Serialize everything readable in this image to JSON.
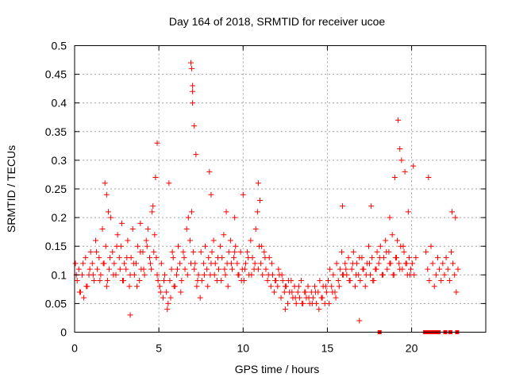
{
  "chart_data": {
    "type": "scatter",
    "title": "Day 164 of 2018, SRMTID for receiver ucoe",
    "xlabel": "GPS time / hours",
    "ylabel": "SRMTID / TECUs",
    "xlim": [
      0,
      24.4
    ],
    "ylim": [
      0,
      0.5
    ],
    "x_ticks": [
      0,
      5,
      10,
      15,
      20
    ],
    "x_tick_labels": [
      "0",
      "5",
      "10",
      "15",
      "20"
    ],
    "y_ticks": [
      0,
      0.05,
      0.1,
      0.15,
      0.2,
      0.25,
      0.3,
      0.35,
      0.4,
      0.45,
      0.5
    ],
    "y_tick_labels": [
      "0",
      "0.05",
      "0.1",
      "0.15",
      "0.2",
      "0.25",
      "0.3",
      "0.35",
      "0.4",
      "0.45",
      "0.5"
    ],
    "grid": true,
    "marker": "plus",
    "color": "#ff0000",
    "baseline_points_x": [
      18.1,
      20.8,
      21.0,
      21.2,
      21.4,
      21.6,
      22.0,
      22.3,
      22.7
    ],
    "series": [
      {
        "name": "SRMTID",
        "x": [
          0.05,
          0.15,
          0.25,
          0.35,
          0.45,
          0.55,
          0.65,
          0.75,
          0.85,
          0.95,
          1.05,
          1.15,
          1.25,
          1.35,
          1.45,
          1.55,
          1.65,
          1.75,
          1.85,
          1.95,
          2.05,
          2.15,
          2.25,
          2.35,
          2.45,
          2.55,
          2.65,
          2.75,
          2.85,
          2.95,
          3.05,
          3.15,
          3.25,
          3.35,
          3.45,
          3.55,
          3.65,
          3.75,
          3.85,
          3.95,
          4.05,
          4.15,
          4.25,
          4.35,
          4.45,
          4.55,
          4.65,
          4.75,
          4.85,
          4.95,
          5.05,
          5.15,
          5.25,
          5.35,
          5.45,
          5.55,
          5.65,
          5.75,
          5.85,
          5.95,
          6.05,
          6.15,
          6.25,
          6.35,
          6.45,
          6.55,
          6.65,
          6.75,
          6.85,
          6.95,
          7.05,
          7.15,
          7.25,
          7.35,
          7.45,
          7.55,
          7.65,
          7.75,
          7.85,
          7.95,
          8.05,
          8.15,
          8.25,
          8.35,
          8.45,
          8.55,
          8.65,
          8.75,
          8.85,
          8.95,
          9.05,
          9.15,
          9.25,
          9.35,
          9.45,
          9.55,
          9.65,
          9.75,
          9.85,
          9.95,
          10.05,
          10.15,
          10.25,
          10.35,
          10.45,
          10.55,
          10.65,
          10.75,
          10.85,
          10.95,
          11.05,
          11.15,
          11.25,
          11.35,
          11.45,
          11.55,
          11.65,
          11.75,
          11.85,
          11.95,
          12.05,
          12.15,
          12.25,
          12.35,
          12.45,
          12.55,
          12.65,
          12.75,
          12.85,
          12.95,
          13.05,
          13.15,
          13.25,
          13.35,
          13.45,
          13.55,
          13.65,
          13.75,
          13.85,
          13.95,
          14.05,
          14.15,
          14.25,
          14.35,
          14.45,
          14.55,
          14.65,
          14.75,
          14.85,
          14.95,
          15.05,
          15.15,
          15.25,
          15.35,
          15.45,
          15.55,
          15.65,
          15.75,
          15.85,
          15.95,
          16.05,
          16.15,
          16.25,
          16.35,
          16.45,
          16.55,
          16.65,
          16.75,
          16.85,
          16.95,
          17.05,
          17.15,
          17.25,
          17.35,
          17.45,
          17.55,
          17.65,
          17.75,
          17.85,
          17.95,
          18.05,
          18.15,
          18.25,
          18.35,
          18.45,
          18.55,
          18.65,
          18.75,
          18.85,
          18.95,
          19.05,
          19.15,
          19.25,
          19.35,
          19.45,
          19.55,
          19.65,
          19.75,
          19.85,
          19.95,
          20.05,
          20.15,
          20.25,
          20.85,
          20.95,
          21.05,
          21.15,
          21.25,
          21.35,
          21.45,
          21.55,
          21.65,
          21.75,
          21.85,
          21.95,
          22.05,
          22.15,
          22.25,
          22.35,
          22.45,
          22.55,
          22.65,
          22.75,
          0.1,
          0.3,
          0.5,
          0.7,
          0.9,
          1.1,
          1.3,
          1.5,
          1.7,
          1.9,
          2.1,
          2.3,
          2.5,
          2.7,
          2.9,
          3.1,
          3.3,
          3.5,
          3.7,
          3.9,
          4.1,
          4.3,
          4.5,
          4.7,
          4.9,
          5.1,
          5.3,
          5.5,
          5.7,
          5.9,
          6.1,
          6.3,
          6.5,
          6.7,
          6.9,
          7.1,
          7.3,
          7.5,
          7.7,
          7.9,
          8.1,
          8.3,
          8.5,
          8.7,
          8.9,
          9.1,
          9.3,
          9.5,
          9.7,
          9.9,
          10.1,
          10.3,
          10.5,
          10.7,
          10.9,
          11.1,
          11.3,
          11.5,
          11.7,
          11.9,
          12.1,
          12.3,
          12.5,
          12.7,
          12.9,
          13.1,
          13.3,
          13.5,
          13.7,
          13.9,
          14.1,
          14.3,
          14.5,
          14.7,
          14.9,
          15.1,
          15.3,
          15.5,
          15.7,
          15.9,
          16.1,
          16.3,
          16.5,
          16.7,
          16.9,
          17.1,
          17.3,
          17.5,
          17.7,
          17.9,
          18.1,
          18.3,
          18.5,
          18.7,
          18.9,
          19.1,
          19.3,
          19.5,
          19.7,
          19.9,
          4.8,
          4.9,
          6.9,
          7.0,
          7.0,
          7.1,
          7.0,
          7.2,
          6.95,
          19.2,
          19.3,
          19.4,
          19.0,
          19.6,
          20.1,
          8.0,
          8.1,
          10.9,
          11.0,
          5.6,
          1.8,
          1.9,
          2.0,
          2.8,
          3.3,
          3.9,
          4.6,
          5.8,
          9.0,
          9.5,
          10.0,
          17.6,
          18.7,
          19.8,
          21.0,
          22.4,
          22.6,
          15.9,
          16.9,
          12.5
        ],
        "y": [
          0.12,
          0.09,
          0.11,
          0.07,
          0.1,
          0.06,
          0.13,
          0.08,
          0.1,
          0.14,
          0.12,
          0.09,
          0.16,
          0.11,
          0.13,
          0.1,
          0.18,
          0.12,
          0.15,
          0.09,
          0.11,
          0.2,
          0.14,
          0.12,
          0.1,
          0.17,
          0.13,
          0.15,
          0.09,
          0.12,
          0.11,
          0.16,
          0.08,
          0.13,
          0.18,
          0.1,
          0.12,
          0.15,
          0.09,
          0.11,
          0.14,
          0.1,
          0.16,
          0.18,
          0.13,
          0.11,
          0.22,
          0.17,
          0.13,
          0.09,
          0.08,
          0.12,
          0.06,
          0.1,
          0.07,
          0.05,
          0.09,
          0.11,
          0.13,
          0.08,
          0.1,
          0.15,
          0.12,
          0.09,
          0.14,
          0.11,
          0.18,
          0.2,
          0.16,
          0.21,
          0.14,
          0.12,
          0.08,
          0.1,
          0.06,
          0.09,
          0.12,
          0.15,
          0.11,
          0.13,
          0.1,
          0.14,
          0.16,
          0.12,
          0.09,
          0.11,
          0.15,
          0.13,
          0.17,
          0.1,
          0.12,
          0.14,
          0.16,
          0.11,
          0.13,
          0.15,
          0.12,
          0.1,
          0.14,
          0.11,
          0.09,
          0.12,
          0.14,
          0.1,
          0.16,
          0.13,
          0.11,
          0.18,
          0.21,
          0.15,
          0.12,
          0.1,
          0.14,
          0.11,
          0.09,
          0.13,
          0.08,
          0.1,
          0.07,
          0.09,
          0.08,
          0.1,
          0.06,
          0.09,
          0.07,
          0.08,
          0.05,
          0.07,
          0.09,
          0.06,
          0.08,
          0.05,
          0.07,
          0.06,
          0.09,
          0.05,
          0.07,
          0.06,
          0.08,
          0.05,
          0.07,
          0.06,
          0.08,
          0.05,
          0.07,
          0.09,
          0.06,
          0.08,
          0.05,
          0.07,
          0.09,
          0.11,
          0.08,
          0.1,
          0.07,
          0.12,
          0.09,
          0.11,
          0.14,
          0.1,
          0.12,
          0.1,
          0.13,
          0.09,
          0.11,
          0.14,
          0.08,
          0.12,
          0.1,
          0.09,
          0.13,
          0.11,
          0.08,
          0.12,
          0.15,
          0.1,
          0.13,
          0.09,
          0.11,
          0.14,
          0.12,
          0.15,
          0.1,
          0.13,
          0.16,
          0.11,
          0.14,
          0.12,
          0.17,
          0.1,
          0.13,
          0.16,
          0.12,
          0.15,
          0.11,
          0.14,
          0.12,
          0.1,
          0.13,
          0.11,
          0.12,
          0.1,
          0.13,
          0.14,
          0.11,
          0.09,
          0.15,
          0.12,
          0.08,
          0.1,
          0.13,
          0.11,
          0.09,
          0.12,
          0.1,
          0.13,
          0.11,
          0.09,
          0.14,
          0.12,
          0.1,
          0.07,
          0.11,
          0.1,
          0.07,
          0.12,
          0.08,
          0.11,
          0.1,
          0.14,
          0.09,
          0.12,
          0.08,
          0.13,
          0.1,
          0.15,
          0.11,
          0.09,
          0.13,
          0.1,
          0.12,
          0.08,
          0.14,
          0.11,
          0.15,
          0.12,
          0.14,
          0.1,
          0.07,
          0.09,
          0.04,
          0.06,
          0.08,
          0.11,
          0.07,
          0.13,
          0.1,
          0.12,
          0.11,
          0.09,
          0.14,
          0.1,
          0.08,
          0.12,
          0.1,
          0.13,
          0.09,
          0.11,
          0.08,
          0.12,
          0.14,
          0.1,
          0.09,
          0.11,
          0.13,
          0.1,
          0.12,
          0.11,
          0.15,
          0.13,
          0.1,
          0.12,
          0.09,
          0.11,
          0.1,
          0.08,
          0.09,
          0.07,
          0.06,
          0.08,
          0.05,
          0.07,
          0.06,
          0.05,
          0.07,
          0.04,
          0.06,
          0.08,
          0.05,
          0.07,
          0.06,
          0.08,
          0.1,
          0.11,
          0.09,
          0.12,
          0.1,
          0.13,
          0.11,
          0.1,
          0.12,
          0.09,
          0.11,
          0.13,
          0.1,
          0.14,
          0.12,
          0.1,
          0.13,
          0.11,
          0.15,
          0.12,
          0.1,
          0.27,
          0.33,
          0.47,
          0.43,
          0.42,
          0.36,
          0.4,
          0.31,
          0.46,
          0.37,
          0.32,
          0.3,
          0.27,
          0.28,
          0.29,
          0.28,
          0.24,
          0.26,
          0.23,
          0.26,
          0.26,
          0.24,
          0.21,
          0.19,
          0.03,
          0.19,
          0.21,
          0.14,
          0.21,
          0.2,
          0.24,
          0.22,
          0.2,
          0.21,
          0.27,
          0.21,
          0.2,
          0.22,
          0.02,
          0.04
        ]
      }
    ]
  }
}
